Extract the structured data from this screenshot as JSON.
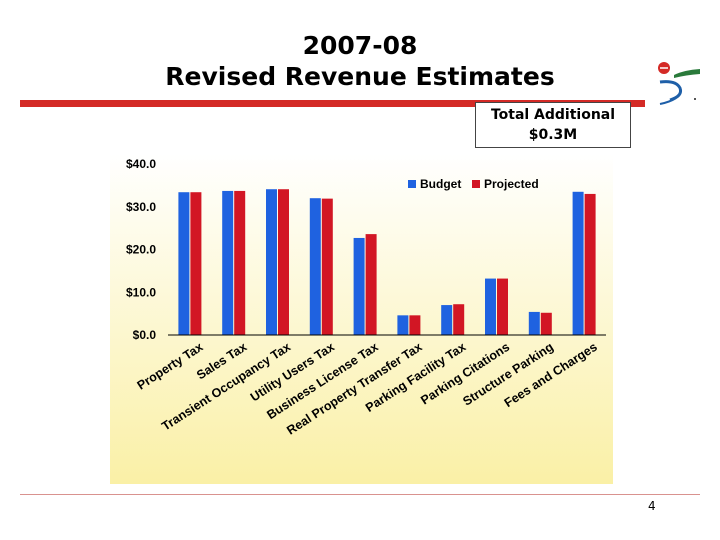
{
  "slide": {
    "title_line1": "2007-08",
    "title_line2": "Revised Revenue Estimates",
    "callout_line1": "Total Additional",
    "callout_line2": "$0.3M",
    "page_number": "4"
  },
  "colors": {
    "budget": "#1f62e0",
    "projected": "#d21624",
    "accent_red": "#d42a26",
    "plot_bg_top": "#ffffff",
    "plot_bg_bottom": "#faf0a6"
  },
  "chart_data": {
    "type": "bar",
    "categories": [
      "Property Tax",
      "Sales Tax",
      "Transient Occupancy Tax",
      "Utility Users Tax",
      "Business License Tax",
      "Real Property Transfer Tax",
      "Parking Facility Tax",
      "Parking Citations",
      "Structure Parking",
      "Fees and Charges"
    ],
    "series": [
      {
        "name": "Budget",
        "values": [
          33.4,
          33.7,
          34.1,
          32.0,
          22.7,
          4.6,
          7.0,
          13.2,
          5.4,
          33.5
        ]
      },
      {
        "name": "Projected",
        "values": [
          33.4,
          33.7,
          34.1,
          31.9,
          23.6,
          4.6,
          7.2,
          13.2,
          5.2,
          33.0
        ]
      }
    ],
    "ylim": [
      0,
      40
    ],
    "yticks": [
      "$0.0",
      "$10.0",
      "$20.0",
      "$30.0",
      "$40.0"
    ],
    "ytick_values": [
      0,
      10,
      20,
      30,
      40
    ],
    "legend": "top-right",
    "grid": false
  }
}
